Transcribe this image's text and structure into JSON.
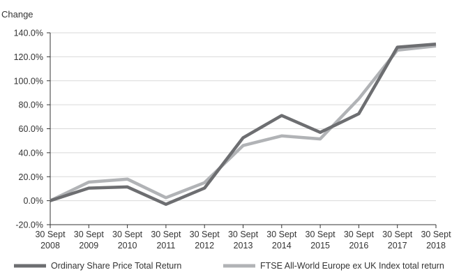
{
  "chart_data": {
    "type": "line",
    "ylabel": "Change",
    "ylim": [
      -20,
      140
    ],
    "ytick_step": 20,
    "ytick_labels": [
      "-20.0%",
      "0.0%",
      "20.0%",
      "40.0%",
      "60.0%",
      "80.0%",
      "100.0%",
      "120.0%",
      "140.0%"
    ],
    "categories": [
      "30 Sept 2008",
      "30 Sept 2009",
      "30 Sept 2010",
      "30 Sept 2011",
      "30 Sept 2012",
      "30 Sept 2013",
      "30 Sept 2014",
      "30 Sept 2015",
      "30 Sept 2016",
      "30 Sept 2017",
      "30 Sept 2018"
    ],
    "category_lines": [
      [
        "30 Sept",
        "2008"
      ],
      [
        "30 Sept",
        "2009"
      ],
      [
        "30 Sept",
        "2010"
      ],
      [
        "30 Sept",
        "2011"
      ],
      [
        "30 Sept",
        "2012"
      ],
      [
        "30 Sept",
        "2013"
      ],
      [
        "30 Sept",
        "2014"
      ],
      [
        "30 Sept",
        "2015"
      ],
      [
        "30 Sept",
        "2016"
      ],
      [
        "30 Sept",
        "2017"
      ],
      [
        "30 Sept",
        "2018"
      ]
    ],
    "series": [
      {
        "name": "Ordinary Share Price Total Return",
        "color": "#6d6e71",
        "values": [
          0,
          10.5,
          11.5,
          -3,
          10.5,
          52.5,
          71,
          57,
          72.5,
          128,
          130.5
        ]
      },
      {
        "name": "FTSE All-World Europe ex UK Index total return",
        "color": "#b1b3b6",
        "values": [
          0,
          15.5,
          18,
          2.5,
          15,
          46,
          54,
          51.5,
          85,
          125.5,
          129
        ]
      }
    ],
    "grid": "horizontal",
    "legend": "bottom"
  }
}
